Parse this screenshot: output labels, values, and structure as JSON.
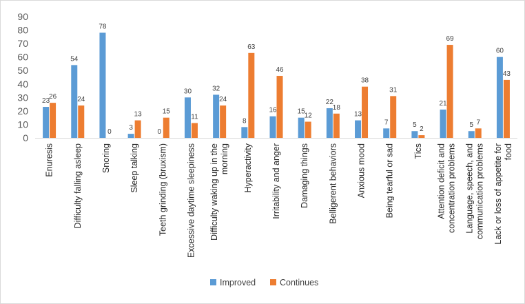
{
  "chart_data": {
    "type": "bar",
    "title": "",
    "xlabel": "",
    "ylabel": "",
    "ylim": [
      0,
      90
    ],
    "yticks": [
      0,
      10,
      20,
      30,
      40,
      50,
      60,
      70,
      80,
      90
    ],
    "grid": false,
    "legend_position": "bottom",
    "categories": [
      [
        "Enuresis"
      ],
      [
        "Difficulty falling asleep"
      ],
      [
        "Snoring"
      ],
      [
        "Sleep talking"
      ],
      [
        "Teeth grinding (bruxism)"
      ],
      [
        "Excessive daytime sleepiness"
      ],
      [
        "Difficulty waking up in the",
        "morning"
      ],
      [
        "Hyperactivity"
      ],
      [
        "Irritability and anger"
      ],
      [
        "Damaging things"
      ],
      [
        "Belligerent behaviors"
      ],
      [
        "Anxious mood"
      ],
      [
        "Being tearful or sad"
      ],
      [
        "Tics"
      ],
      [
        "Attention deficit and",
        "concentration problems"
      ],
      [
        "Language, speech, and",
        "communication problems"
      ],
      [
        "Lack or loss of appetite for",
        "food"
      ]
    ],
    "series": [
      {
        "name": "Improved",
        "color": "#5b9bd5",
        "values": [
          23,
          54,
          78,
          3,
          0,
          30,
          32,
          8,
          16,
          15,
          22,
          13,
          7,
          5,
          21,
          5,
          60
        ]
      },
      {
        "name": "Continues",
        "color": "#ed7d31",
        "values": [
          26,
          24,
          0,
          13,
          15,
          11,
          24,
          63,
          46,
          12,
          18,
          38,
          31,
          2,
          69,
          7,
          43
        ]
      }
    ]
  }
}
